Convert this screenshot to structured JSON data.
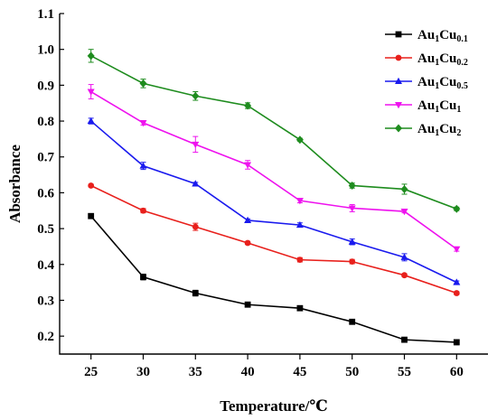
{
  "chart_data": {
    "type": "line",
    "xlabel": "Temperature/℃",
    "ylabel": "Absorbance",
    "x": [
      25,
      30,
      35,
      40,
      45,
      50,
      55,
      60
    ],
    "xlim": [
      22,
      63
    ],
    "ylim": [
      0.15,
      1.1
    ],
    "x_ticks": [
      "25",
      "30",
      "35",
      "40",
      "45",
      "50",
      "55",
      "60"
    ],
    "y_ticks": [
      "0.2",
      "0.3",
      "0.4",
      "0.5",
      "0.6",
      "0.7",
      "0.8",
      "0.9",
      "1.0",
      "1.1"
    ],
    "grid": false,
    "legend_position": "top-right",
    "series": [
      {
        "name": "Au1Cu0.1",
        "base": "Au",
        "sub1": "1",
        "mid": "Cu",
        "sub2": "0.1",
        "color": "#000000",
        "marker": "square",
        "values": [
          0.535,
          0.365,
          0.32,
          0.288,
          0.278,
          0.24,
          0.19,
          0.183
        ],
        "errors": [
          0.004,
          0.008,
          0.008,
          0.003,
          0.004,
          0.003,
          0.003,
          0.007
        ]
      },
      {
        "name": "Au1Cu0.2",
        "base": "Au",
        "sub1": "1",
        "mid": "Cu",
        "sub2": "0.2",
        "color": "#e8201c",
        "marker": "circle",
        "values": [
          0.62,
          0.55,
          0.505,
          0.46,
          0.413,
          0.408,
          0.37,
          0.32
        ],
        "errors": [
          0.003,
          0.006,
          0.01,
          0.004,
          0.006,
          0.006,
          0.004,
          0.004
        ]
      },
      {
        "name": "Au1Cu0.5",
        "base": "Au",
        "sub1": "1",
        "mid": "Cu",
        "sub2": "0.5",
        "color": "#1a1aee",
        "marker": "triangle-up",
        "values": [
          0.8,
          0.675,
          0.625,
          0.523,
          0.51,
          0.463,
          0.42,
          0.35
        ],
        "errors": [
          0.008,
          0.01,
          0.004,
          0.004,
          0.006,
          0.008,
          0.01,
          0.004
        ]
      },
      {
        "name": "Au1Cu1",
        "base": "Au",
        "sub1": "1",
        "mid": "Cu",
        "sub2": "1",
        "color": "#ee12ee",
        "marker": "triangle-down",
        "values": [
          0.882,
          0.795,
          0.735,
          0.678,
          0.578,
          0.557,
          0.548,
          0.443
        ],
        "errors": [
          0.02,
          0.006,
          0.022,
          0.012,
          0.006,
          0.01,
          0.004,
          0.006
        ]
      },
      {
        "name": "Au1Cu2",
        "base": "Au",
        "sub1": "1",
        "mid": "Cu",
        "sub2": "2",
        "color": "#1e8c1e",
        "marker": "diamond",
        "values": [
          0.982,
          0.905,
          0.87,
          0.843,
          0.748,
          0.62,
          0.61,
          0.555
        ],
        "errors": [
          0.018,
          0.012,
          0.012,
          0.008,
          0.004,
          0.007,
          0.014,
          0.005
        ]
      }
    ]
  }
}
